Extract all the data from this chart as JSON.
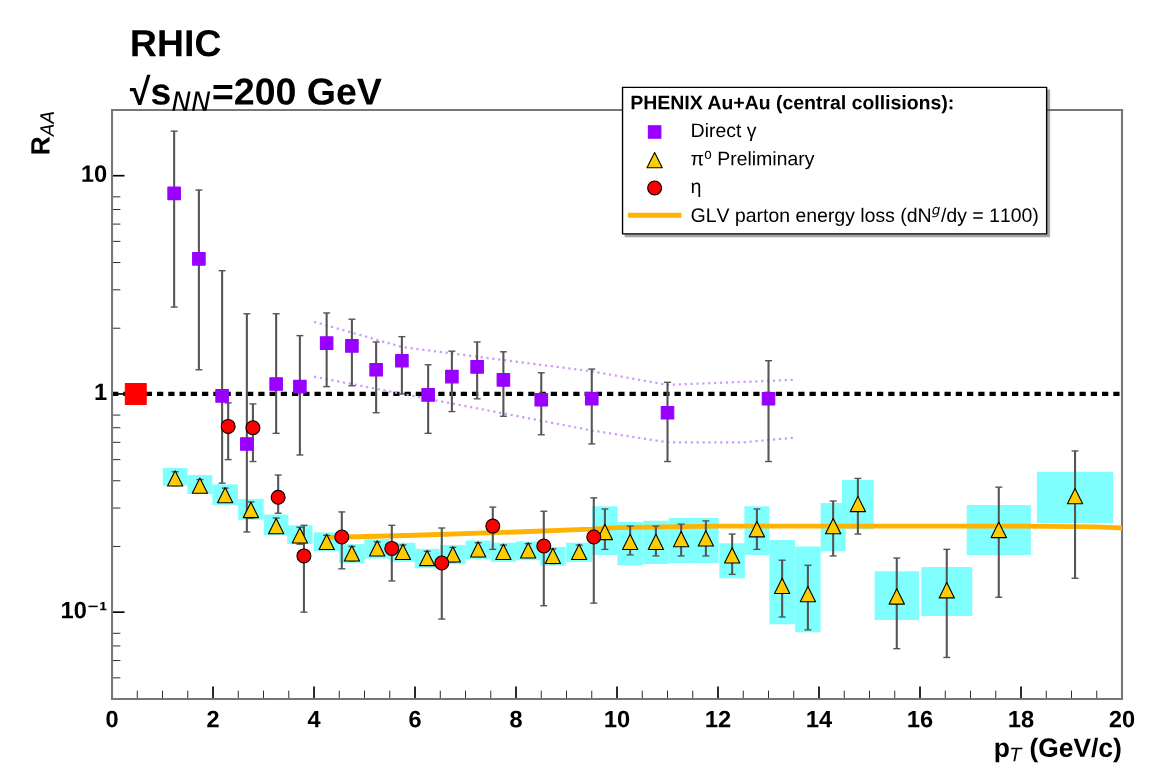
{
  "chart_data": {
    "type": "scatter",
    "annotations": [
      "RHIC",
      "√s$_{NN}$=200 GeV"
    ],
    "xlabel": "p$_{T}$ (GeV/c)",
    "ylabel": "R$_{AA}$",
    "legend_title": "PHENIX Au+Au (central collisions):",
    "legend": "top right",
    "grid": false,
    "log": "y",
    "xlim": [
      0,
      20
    ],
    "xticks": [
      0,
      2,
      4,
      6,
      8,
      10,
      12,
      14,
      16,
      18,
      20
    ],
    "ylim": [
      0.04,
      20
    ],
    "yticks": [
      {
        "value": 0.1,
        "label": "10⁻¹"
      },
      1,
      10
    ],
    "ref_lines": [
      {
        "axis": "y",
        "value": 1,
        "color": "#000000",
        "line_style": "dotted"
      }
    ],
    "series": [
      {
        "type": "bar",
        "color": "#80ffff",
        "x": [
          1.25,
          1.74,
          2.24,
          2.75,
          3.25,
          3.72,
          4.25,
          4.75,
          5.25,
          5.76,
          6.24,
          6.75,
          7.25,
          7.75,
          8.24,
          8.73,
          9.25,
          9.76,
          10.26,
          10.77,
          11.27,
          11.76,
          12.28,
          12.77,
          13.27,
          13.78,
          14.28,
          14.77,
          15.54,
          16.53,
          17.56,
          19.07
        ],
        "base": [
          0.38,
          0.348,
          0.31,
          0.265,
          0.225,
          0.205,
          0.19,
          0.168,
          0.176,
          0.17,
          0.159,
          0.166,
          0.175,
          0.17,
          0.173,
          0.163,
          0.17,
          0.183,
          0.164,
          0.166,
          0.168,
          0.168,
          0.143,
          0.183,
          0.088,
          0.081,
          0.19,
          0.24,
          0.092,
          0.096,
          0.183,
          0.256
        ],
        "values": [
          0.078,
          0.077,
          0.075,
          0.065,
          0.055,
          0.045,
          0.042,
          0.037,
          0.04,
          0.038,
          0.036,
          0.037,
          0.038,
          0.038,
          0.038,
          0.036,
          0.038,
          0.123,
          0.095,
          0.096,
          0.102,
          0.102,
          0.064,
          0.123,
          0.126,
          0.119,
          0.126,
          0.163,
          0.062,
          0.065,
          0.127,
          0.184
        ]
      },
      {
        "type": "line",
        "name": "GLV parton energy loss (dN$^{g}$/dy = 1100)",
        "color": "#ffb300",
        "x": [
          4.3,
          6,
          8,
          9.5,
          10,
          12,
          14,
          16,
          18,
          19.5,
          20
        ],
        "values": [
          0.22,
          0.225,
          0.233,
          0.24,
          0.244,
          0.248,
          0.248,
          0.248,
          0.248,
          0.246,
          0.243
        ]
      },
      {
        "type": "line",
        "line_style": "dotted",
        "color": "#cc99ff",
        "x": [
          4,
          5.75,
          9.5,
          11,
          13.5
        ],
        "values": [
          2.14,
          1.64,
          1.27,
          1.1,
          1.16
        ]
      },
      {
        "type": "line",
        "line_style": "dotted",
        "color": "#cc99ff",
        "x": [
          4,
          5.75,
          9.5,
          11,
          12.5,
          13.5
        ],
        "values": [
          1.2,
          1.0,
          0.68,
          0.6,
          0.6,
          0.63
        ]
      },
      {
        "marker": "square",
        "color": "#ff0000",
        "x": [
          0.47
        ],
        "values": [
          1
        ]
      },
      {
        "name": "Direct γ",
        "marker": "square",
        "color": "#9900ff",
        "x": [
          1.23,
          1.72,
          2.18,
          2.67,
          3.25,
          3.72,
          4.25,
          4.75,
          5.23,
          5.74,
          6.26,
          6.73,
          7.23,
          7.75,
          8.5,
          9.5,
          11.0,
          13.0
        ],
        "values": [
          8.3,
          4.16,
          0.98,
          0.59,
          1.11,
          1.08,
          1.71,
          1.66,
          1.29,
          1.42,
          0.99,
          1.2,
          1.33,
          1.16,
          0.94,
          0.95,
          0.82,
          0.95
        ],
        "errors": [
          [
            2.5,
            16
          ],
          [
            1.29,
            8.6
          ],
          [
            0.39,
            3.67
          ],
          [
            0.233,
            2.33
          ],
          [
            0.66,
            2.33
          ],
          [
            0.525,
            1.85
          ],
          [
            1.08,
            2.35
          ],
          [
            1.09,
            2.2
          ],
          [
            0.82,
            1.73
          ],
          [
            1.0,
            1.83
          ],
          [
            0.66,
            1.36
          ],
          [
            0.83,
            1.57
          ],
          [
            0.95,
            1.73
          ],
          [
            0.79,
            1.56
          ],
          [
            0.65,
            1.25
          ],
          [
            0.59,
            1.3
          ],
          [
            0.49,
            1.13
          ],
          [
            0.49,
            1.42
          ]
        ]
      },
      {
        "name": "π⁰ Preliminary",
        "marker": "triangle",
        "color": "#ffcc00",
        "x": [
          1.25,
          1.74,
          2.24,
          2.75,
          3.25,
          3.72,
          4.25,
          4.75,
          5.25,
          5.76,
          6.24,
          6.75,
          7.25,
          7.75,
          8.24,
          8.73,
          9.25,
          9.76,
          10.26,
          10.77,
          11.27,
          11.76,
          12.28,
          12.77,
          13.27,
          13.78,
          14.28,
          14.77,
          15.54,
          16.53,
          17.56,
          19.07
        ],
        "values": [
          0.41,
          0.38,
          0.344,
          0.294,
          0.248,
          0.225,
          0.21,
          0.186,
          0.196,
          0.189,
          0.177,
          0.184,
          0.194,
          0.189,
          0.192,
          0.181,
          0.189,
          0.233,
          0.21,
          0.21,
          0.216,
          0.218,
          0.182,
          0.24,
          0.132,
          0.121,
          0.248,
          0.313,
          0.118,
          0.126,
          0.238,
          0.34
        ],
        "errors": [
          [
            0.38,
            0.44
          ],
          [
            0.355,
            0.405
          ],
          [
            0.32,
            0.37
          ],
          [
            0.27,
            0.32
          ],
          [
            0.23,
            0.27
          ],
          [
            0.205,
            0.245
          ],
          [
            0.195,
            0.225
          ],
          [
            0.172,
            0.2
          ],
          [
            0.182,
            0.21
          ],
          [
            0.175,
            0.203
          ],
          [
            0.164,
            0.19
          ],
          [
            0.17,
            0.198
          ],
          [
            0.18,
            0.208
          ],
          [
            0.175,
            0.203
          ],
          [
            0.178,
            0.206
          ],
          [
            0.167,
            0.195
          ],
          [
            0.175,
            0.203
          ],
          [
            0.194,
            0.297
          ],
          [
            0.183,
            0.248
          ],
          [
            0.181,
            0.248
          ],
          [
            0.181,
            0.253
          ],
          [
            0.181,
            0.262
          ],
          [
            0.149,
            0.228
          ],
          [
            0.194,
            0.297
          ],
          [
            0.095,
            0.173
          ],
          [
            0.083,
            0.164
          ],
          [
            0.181,
            0.323
          ],
          [
            0.228,
            0.41
          ],
          [
            0.068,
            0.177
          ],
          [
            0.062,
            0.194
          ],
          [
            0.117,
            0.374
          ],
          [
            0.143,
            0.548
          ]
        ]
      },
      {
        "name": "η",
        "marker": "circle",
        "color": "#ff0000",
        "x": [
          2.3,
          2.79,
          3.29,
          3.8,
          4.55,
          5.54,
          6.53,
          7.54,
          8.55,
          9.54
        ],
        "values": [
          0.71,
          0.7,
          0.336,
          0.181,
          0.221,
          0.196,
          0.168,
          0.248,
          0.201,
          0.221
        ],
        "errors": [
          [
            0.5,
            0.91
          ],
          [
            0.49,
            0.9
          ],
          [
            0.284,
            0.425
          ],
          [
            0.1,
            0.25
          ],
          [
            0.158,
            0.288
          ],
          [
            0.139,
            0.25
          ],
          [
            0.093,
            0.243
          ],
          [
            0.194,
            0.303
          ],
          [
            0.107,
            0.29
          ],
          [
            0.11,
            0.334
          ]
        ]
      }
    ]
  }
}
